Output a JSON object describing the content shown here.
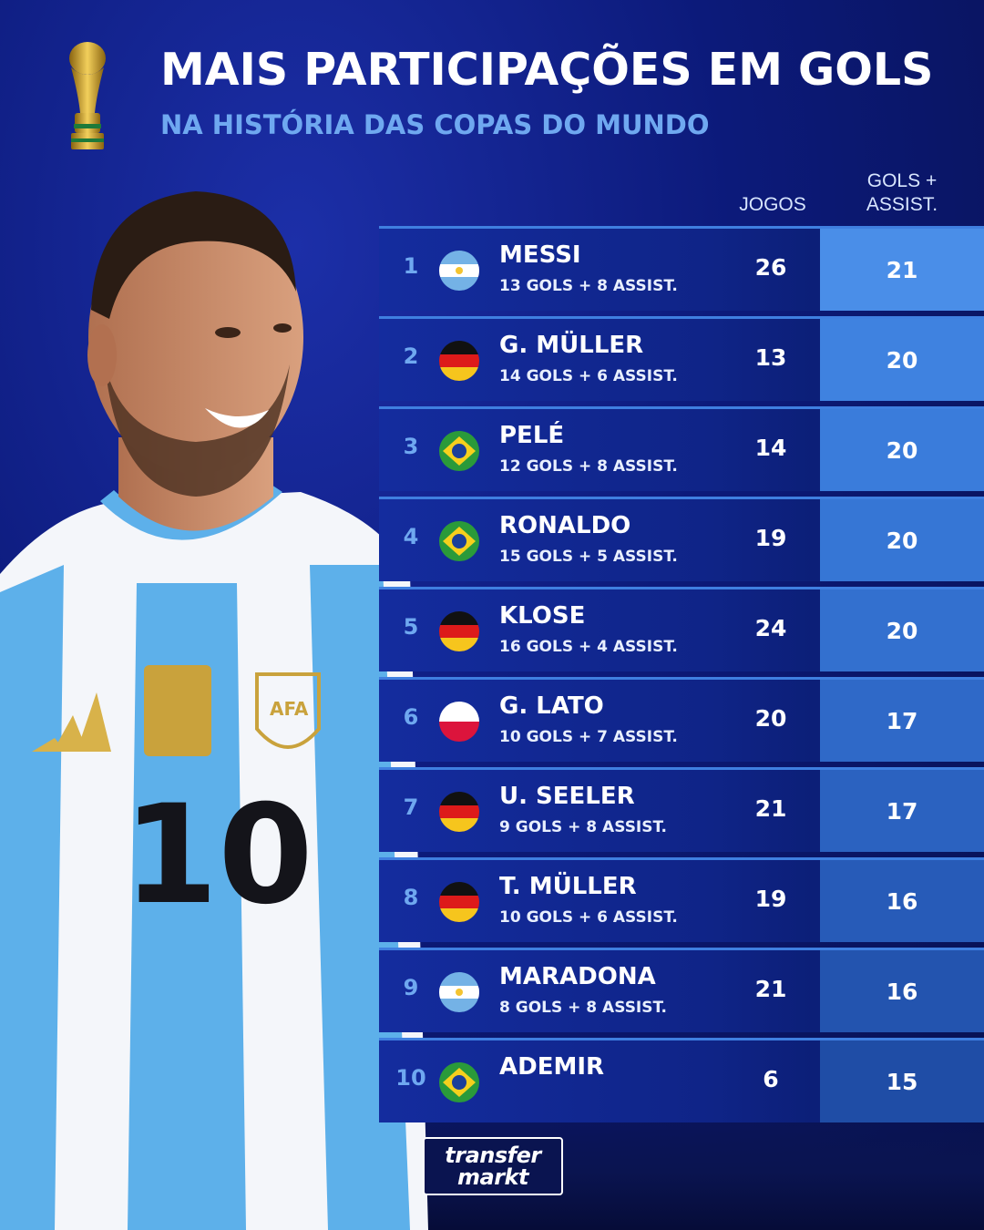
{
  "header": {
    "title": "MAIS PARTICIPAÇÕES EM GOLS",
    "subtitle": "NA HISTÓRIA DAS COPAS DO MUNDO"
  },
  "columns": {
    "jogos": "JOGOS",
    "ga_line1": "GOLS +",
    "ga_line2": "ASSIST."
  },
  "rows": [
    {
      "rank": "1",
      "flag": "argentina-flag",
      "name": "MESSI",
      "detail": "13 GOLS + 8 ASSIST.",
      "jogos": "26",
      "ga": "21"
    },
    {
      "rank": "2",
      "flag": "germany-flag",
      "name": "G. MÜLLER",
      "detail": "14 GOLS + 6 ASSIST.",
      "jogos": "13",
      "ga": "20"
    },
    {
      "rank": "3",
      "flag": "brazil-flag",
      "name": "PELÉ",
      "detail": "12 GOLS + 8 ASSIST.",
      "jogos": "14",
      "ga": "20"
    },
    {
      "rank": "4",
      "flag": "brazil-flag",
      "name": "RONALDO",
      "detail": "15 GOLS + 5 ASSIST.",
      "jogos": "19",
      "ga": "20"
    },
    {
      "rank": "5",
      "flag": "germany-flag",
      "name": "KLOSE",
      "detail": "16 GOLS + 4 ASSIST.",
      "jogos": "24",
      "ga": "20"
    },
    {
      "rank": "6",
      "flag": "poland-flag",
      "name": "G. LATO",
      "detail": "10 GOLS + 7 ASSIST.",
      "jogos": "20",
      "ga": "17"
    },
    {
      "rank": "7",
      "flag": "germany-flag",
      "name": "U. SEELER",
      "detail": "9 GOLS + 8 ASSIST.",
      "jogos": "21",
      "ga": "17"
    },
    {
      "rank": "8",
      "flag": "germany-flag",
      "name": "T. MÜLLER",
      "detail": "10 GOLS + 6 ASSIST.",
      "jogos": "19",
      "ga": "16"
    },
    {
      "rank": "9",
      "flag": "argentina-flag",
      "name": "MARADONA",
      "detail": "8 GOLS + 8 ASSIST.",
      "jogos": "21",
      "ga": "16"
    },
    {
      "rank": "10",
      "flag": "brazil-flag",
      "name": "ADEMIR",
      "detail": "",
      "jogos": "6",
      "ga": "15"
    }
  ],
  "ga_colors": [
    "#4a8ee8",
    "#3f82e0",
    "#3a7cdb",
    "#3676d5",
    "#3370cf",
    "#2f69c8",
    "#2b62c0",
    "#275bb8",
    "#2354af",
    "#1f4da6"
  ],
  "jersey": {
    "number": "10"
  },
  "logo": {
    "line1": "transfer",
    "line2": "markt"
  },
  "icons": {
    "trophy": "world-cup-trophy-icon"
  }
}
